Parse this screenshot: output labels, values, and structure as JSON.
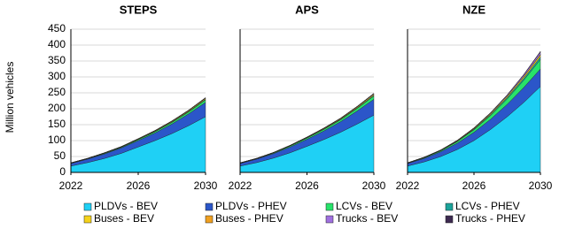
{
  "chart_data": [
    {
      "type": "area",
      "title": "STEPS",
      "ylabel": "Million vehicles",
      "x": [
        2022,
        2023,
        2024,
        2025,
        2026,
        2027,
        2028,
        2029,
        2030
      ],
      "xlim": [
        2022,
        2030
      ],
      "xticks": [
        2022,
        2026,
        2030
      ],
      "ylim": [
        0,
        450
      ],
      "yticks": [
        0,
        50,
        100,
        150,
        200,
        250,
        300,
        350,
        400,
        450
      ],
      "grid": true,
      "series": [
        {
          "name": "PLDVs - BEV",
          "color": "#1fd0f5",
          "values": [
            20,
            31,
            44,
            60,
            80,
            100,
            122,
            147,
            175
          ]
        },
        {
          "name": "PLDVs - PHEV",
          "color": "#2b56c9",
          "values": [
            8,
            11,
            14,
            17,
            20,
            24,
            30,
            37,
            45
          ]
        },
        {
          "name": "LCVs - BEV",
          "color": "#27e36a",
          "values": [
            1,
            1,
            2,
            2,
            3,
            4,
            5,
            6,
            8
          ]
        },
        {
          "name": "LCVs - PHEV",
          "color": "#1ba39a",
          "values": [
            0.3,
            0.4,
            0.5,
            0.7,
            0.9,
            1.1,
            1.4,
            1.7,
            2
          ]
        },
        {
          "name": "Buses - BEV",
          "color": "#f5d21a",
          "values": [
            0.7,
            0.8,
            1,
            1.2,
            1.5,
            1.8,
            2.2,
            2.6,
            3
          ]
        },
        {
          "name": "Buses - PHEV",
          "color": "#f0a020",
          "values": [
            0.1,
            0.1,
            0.1,
            0.1,
            0.1,
            0.2,
            0.2,
            0.2,
            0.2
          ]
        },
        {
          "name": "Trucks - BEV",
          "color": "#a070e0",
          "values": [
            0.1,
            0.1,
            0.2,
            0.3,
            0.4,
            0.6,
            0.8,
            1.1,
            1.5
          ]
        },
        {
          "name": "Trucks - PHEV",
          "color": "#3d2a50",
          "values": [
            0.05,
            0.05,
            0.05,
            0.1,
            0.1,
            0.1,
            0.1,
            0.2,
            0.2
          ]
        }
      ]
    },
    {
      "type": "area",
      "title": "APS",
      "x": [
        2022,
        2023,
        2024,
        2025,
        2026,
        2027,
        2028,
        2029,
        2030
      ],
      "xlim": [
        2022,
        2030
      ],
      "xticks": [
        2022,
        2026,
        2030
      ],
      "ylim": [
        0,
        450
      ],
      "yticks": [
        0,
        50,
        100,
        150,
        200,
        250,
        300,
        350,
        400,
        450
      ],
      "grid": true,
      "series": [
        {
          "name": "PLDVs - BEV",
          "color": "#1fd0f5",
          "values": [
            20,
            31,
            45,
            62,
            82,
            103,
            126,
            152,
            180
          ]
        },
        {
          "name": "PLDVs - PHEV",
          "color": "#2b56c9",
          "values": [
            8,
            11,
            14,
            18,
            22,
            27,
            33,
            41,
            50
          ]
        },
        {
          "name": "LCVs - BEV",
          "color": "#27e36a",
          "values": [
            1,
            1,
            2,
            3,
            4,
            5,
            6,
            8,
            10
          ]
        },
        {
          "name": "LCVs - PHEV",
          "color": "#1ba39a",
          "values": [
            0.3,
            0.4,
            0.5,
            0.7,
            0.9,
            1.2,
            1.5,
            1.9,
            2.5
          ]
        },
        {
          "name": "Buses - BEV",
          "color": "#f5d21a",
          "values": [
            0.7,
            0.8,
            1,
            1.2,
            1.5,
            1.9,
            2.3,
            2.8,
            3.5
          ]
        },
        {
          "name": "Buses - PHEV",
          "color": "#f0a020",
          "values": [
            0.1,
            0.1,
            0.1,
            0.1,
            0.1,
            0.2,
            0.2,
            0.2,
            0.2
          ]
        },
        {
          "name": "Trucks - BEV",
          "color": "#a070e0",
          "values": [
            0.1,
            0.1,
            0.2,
            0.3,
            0.5,
            0.7,
            1,
            1.4,
            2
          ]
        },
        {
          "name": "Trucks - PHEV",
          "color": "#3d2a50",
          "values": [
            0.05,
            0.05,
            0.05,
            0.1,
            0.1,
            0.1,
            0.2,
            0.2,
            0.3
          ]
        }
      ]
    },
    {
      "type": "area",
      "title": "NZE",
      "x": [
        2022,
        2023,
        2024,
        2025,
        2026,
        2027,
        2028,
        2029,
        2030
      ],
      "xlim": [
        2022,
        2030
      ],
      "xticks": [
        2022,
        2026,
        2030
      ],
      "ylim": [
        0,
        450
      ],
      "yticks": [
        0,
        50,
        100,
        150,
        200,
        250,
        300,
        350,
        400,
        450
      ],
      "grid": true,
      "series": [
        {
          "name": "PLDVs - BEV",
          "color": "#1fd0f5",
          "values": [
            20,
            33,
            50,
            72,
            100,
            135,
            175,
            220,
            270
          ]
        },
        {
          "name": "PLDVs - PHEV",
          "color": "#2b56c9",
          "values": [
            8,
            11,
            15,
            20,
            26,
            32,
            39,
            47,
            55
          ]
        },
        {
          "name": "LCVs - BEV",
          "color": "#27e36a",
          "values": [
            1,
            2,
            3,
            5,
            8,
            12,
            17,
            23,
            30
          ]
        },
        {
          "name": "LCVs - PHEV",
          "color": "#1ba39a",
          "values": [
            0.3,
            0.5,
            0.8,
            1.3,
            2,
            3,
            4.5,
            6,
            8
          ]
        },
        {
          "name": "Buses - BEV",
          "color": "#f5d21a",
          "values": [
            0.7,
            0.9,
            1.2,
            1.7,
            2.3,
            3.1,
            4.1,
            5.4,
            7
          ]
        },
        {
          "name": "Buses - PHEV",
          "color": "#f0a020",
          "values": [
            0.1,
            0.1,
            0.1,
            0.2,
            0.2,
            0.3,
            0.3,
            0.4,
            0.5
          ]
        },
        {
          "name": "Trucks - BEV",
          "color": "#a070e0",
          "values": [
            0.1,
            0.2,
            0.4,
            0.7,
            1.2,
            2,
            3.2,
            5,
            8
          ]
        },
        {
          "name": "Trucks - PHEV",
          "color": "#3d2a50",
          "values": [
            0.05,
            0.1,
            0.1,
            0.2,
            0.3,
            0.5,
            0.8,
            1.3,
            2
          ]
        }
      ]
    }
  ]
}
